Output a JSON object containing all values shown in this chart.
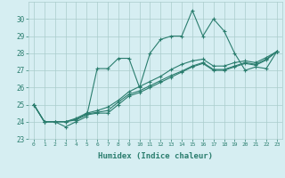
{
  "xlabel": "Humidex (Indice chaleur)",
  "bg_color": "#d6eef2",
  "grid_color": "#aacccc",
  "line_color": "#2a7d6e",
  "xlim": [
    -0.5,
    23.5
  ],
  "ylim": [
    23,
    31
  ],
  "xtick_labels": [
    "0",
    "1",
    "2",
    "3",
    "4",
    "5",
    "6",
    "7",
    "8",
    "9",
    "10",
    "11",
    "12",
    "13",
    "14",
    "15",
    "16",
    "17",
    "18",
    "19",
    "20",
    "21",
    "22",
    "23"
  ],
  "ytick_labels": [
    "23",
    "24",
    "25",
    "26",
    "27",
    "28",
    "29",
    "30"
  ],
  "yticks": [
    23,
    24,
    25,
    26,
    27,
    28,
    29,
    30
  ],
  "series": [
    [
      25.0,
      24.0,
      24.0,
      23.7,
      24.0,
      24.3,
      27.1,
      27.1,
      27.7,
      27.7,
      26.0,
      28.0,
      28.8,
      29.0,
      29.0,
      30.5,
      29.0,
      30.0,
      29.3,
      28.0,
      27.0,
      27.2,
      27.1,
      28.1
    ],
    [
      25.0,
      24.0,
      24.0,
      24.0,
      24.1,
      24.4,
      24.5,
      24.5,
      25.0,
      25.5,
      25.7,
      26.0,
      26.3,
      26.6,
      26.9,
      27.2,
      27.4,
      27.0,
      27.0,
      27.2,
      27.4,
      27.3,
      27.6,
      28.1
    ],
    [
      25.0,
      24.0,
      24.0,
      24.0,
      24.15,
      24.45,
      24.55,
      24.65,
      25.15,
      25.6,
      25.8,
      26.1,
      26.4,
      26.7,
      26.95,
      27.25,
      27.45,
      27.05,
      27.05,
      27.25,
      27.45,
      27.35,
      27.65,
      28.1
    ],
    [
      25.0,
      24.0,
      24.0,
      24.0,
      24.2,
      24.5,
      24.65,
      24.85,
      25.25,
      25.75,
      26.05,
      26.35,
      26.65,
      27.05,
      27.35,
      27.55,
      27.65,
      27.25,
      27.25,
      27.45,
      27.55,
      27.45,
      27.75,
      28.1
    ]
  ]
}
